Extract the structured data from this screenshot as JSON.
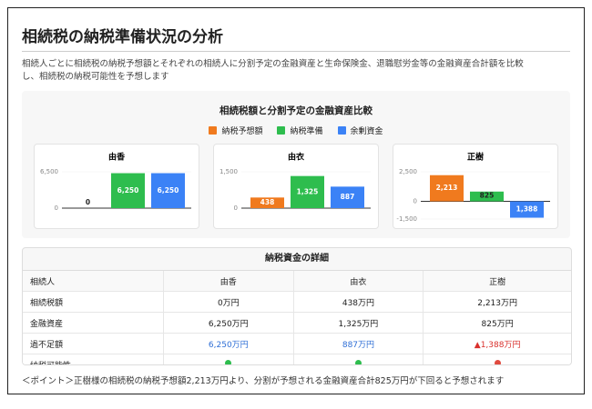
{
  "header": {
    "title": "相続税の納税準備状況の分析",
    "description": "相続人ごとに相続税の納税予想額とそれぞれの相続人に分割予定の金融資産と生命保険金、退職慰労金等の金融資産合計額を比較し、相続税の納税可能性を予想します"
  },
  "comparison": {
    "title": "相続税額と分割予定の金融資産比較",
    "legend": [
      {
        "name": "納税予想額",
        "color": "#f07a1e"
      },
      {
        "name": "納税準備",
        "color": "#2ebd4e"
      },
      {
        "name": "余剰資金",
        "color": "#3b82f6"
      }
    ]
  },
  "chart_data": [
    {
      "type": "bar",
      "title": "由香",
      "values": [
        0,
        6250,
        6250
      ],
      "value_labels": [
        "0",
        "6,250",
        "6,250"
      ],
      "ylim": [
        0,
        6500
      ],
      "yticks": [
        {
          "value": 6500,
          "label": "6,500"
        },
        0
      ]
    },
    {
      "type": "bar",
      "title": "由衣",
      "values": [
        438,
        1325,
        887
      ],
      "value_labels": [
        "438",
        "1,325",
        "887"
      ],
      "ylim": [
        0,
        1500
      ],
      "yticks": [
        {
          "value": 1500,
          "label": "1,500"
        },
        0
      ]
    },
    {
      "type": "bar",
      "title": "正樹",
      "values": [
        2213,
        825,
        -1388
      ],
      "value_labels": [
        "2,213",
        "825",
        "1,388"
      ],
      "ylim": [
        -1500,
        2500
      ],
      "yticks": [
        {
          "value": 2500,
          "label": "2,500"
        },
        0,
        {
          "value": -1500,
          "label": "-1,500"
        }
      ]
    }
  ],
  "table": {
    "title": "納税資金の詳細",
    "columns": [
      "相続人",
      "由香",
      "由衣",
      "正樹"
    ],
    "rows": [
      [
        "相続税額",
        "0万円",
        "438万円",
        "2,213万円"
      ],
      [
        "金融資産",
        "6,250万円",
        "1,325万円",
        "825万円"
      ],
      [
        "過不足額",
        "6,250万円",
        "887万円",
        "▲1,388万円"
      ],
      [
        "納税可能性"
      ]
    ]
  },
  "note": "＜ポイント＞正樹様の相続税の納税予想額2,213万円より、分割が予想される金融資産合計825万円が下回ると予想されます"
}
